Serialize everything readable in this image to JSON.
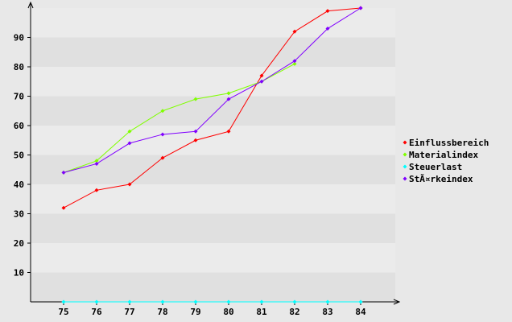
{
  "chart_data": {
    "type": "line",
    "title": "",
    "xlabel": "",
    "ylabel": "",
    "categories": [
      "75",
      "76",
      "77",
      "78",
      "79",
      "80",
      "81",
      "82",
      "83",
      "84"
    ],
    "ylim": [
      0,
      100
    ],
    "y_ticks": [
      "10",
      "20",
      "30",
      "40",
      "50",
      "60",
      "70",
      "80",
      "90"
    ],
    "grid": "alternating horizontal bands",
    "legend_position": "right",
    "series": [
      {
        "name": "Einflussbereich",
        "color": "#ff0000",
        "values": [
          32,
          38,
          40,
          49,
          55,
          58,
          77,
          92,
          99,
          100
        ]
      },
      {
        "name": "Materialindex",
        "color": "#80ff00",
        "values": [
          44,
          48,
          58,
          65,
          69,
          71,
          75,
          81,
          null,
          null
        ]
      },
      {
        "name": "Steuerlast",
        "color": "#00ffff",
        "values": [
          0,
          0,
          0,
          0,
          0,
          0,
          0,
          0,
          0,
          0
        ]
      },
      {
        "name": "StÃ¤rkeindex",
        "color": "#8000ff",
        "values": [
          44,
          47,
          54,
          57,
          58,
          69,
          75,
          82,
          93,
          100
        ]
      }
    ]
  }
}
